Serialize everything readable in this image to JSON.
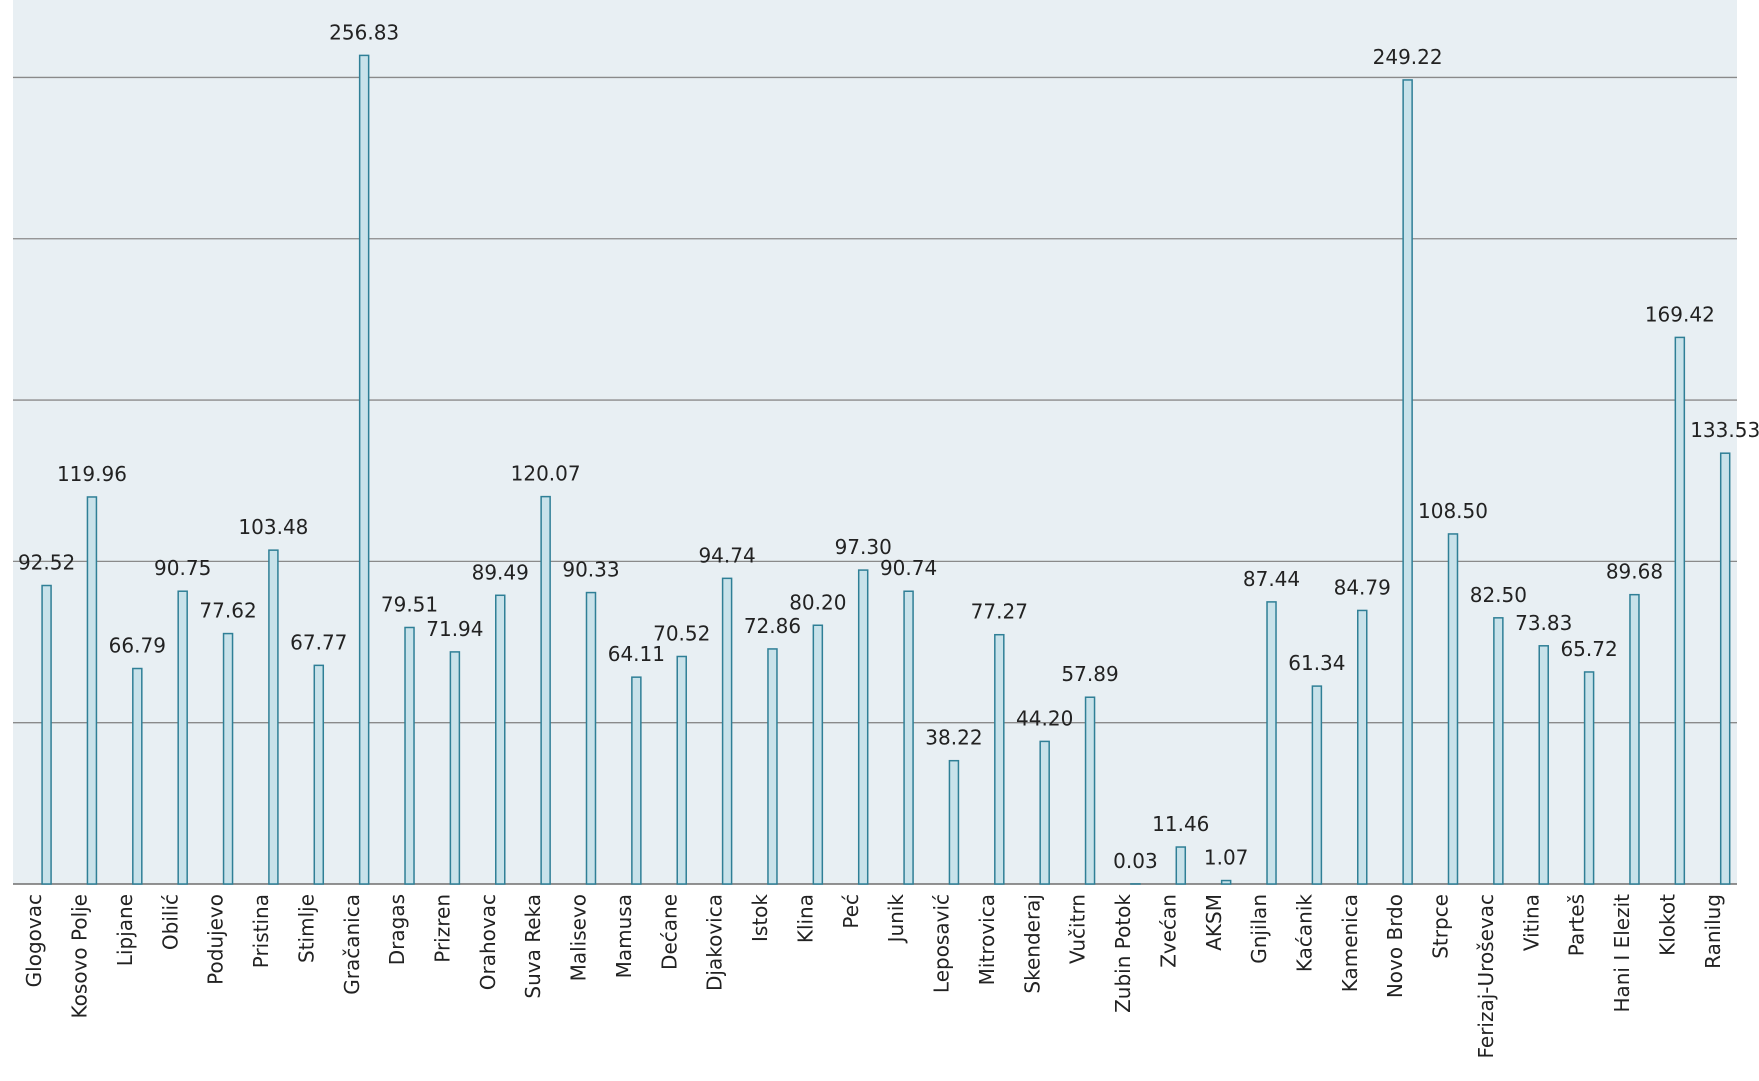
{
  "chart_data": {
    "type": "bar",
    "categories": [
      "Glogovac",
      "Kosovo Polje",
      "Lipjane",
      "Obilić",
      "Podujevo",
      "Pristina",
      "Stimlje",
      "Gračanica",
      "Dragas",
      "Prizren",
      "Orahovac",
      "Suva Reka",
      "Malisevo",
      "Mamusa",
      "Dećane",
      "Djakovica",
      "Istok",
      "Klina",
      "Peć",
      "Junik",
      "Leposavić",
      "Mitrovica",
      "Skenderaj",
      "Vučitrn",
      "Zubin Potok",
      "Zvećan",
      "AKSM",
      "Gnjilan",
      "Kaćanik",
      "Kamenica",
      "Novo Brdo",
      "Strpce",
      "Ferizaj-Uroševac",
      "Vitina",
      "Parteš",
      "Hani I Elezit",
      "Klokot",
      "Ranilug"
    ],
    "values": [
      92.52,
      119.96,
      66.79,
      90.75,
      77.62,
      103.48,
      67.77,
      256.83,
      79.51,
      71.94,
      89.49,
      120.07,
      90.33,
      64.11,
      70.52,
      94.74,
      72.86,
      80.2,
      97.3,
      90.74,
      38.22,
      77.27,
      44.2,
      57.89,
      0.03,
      11.46,
      1.07,
      87.44,
      61.34,
      84.79,
      249.22,
      108.5,
      82.5,
      73.83,
      65.72,
      89.68,
      169.42,
      133.53
    ],
    "value_labels": [
      "92.52",
      "119.96",
      "66.79",
      "90.75",
      "77.62",
      "103.48",
      "67.77",
      "256.83",
      "79.51",
      "71.94",
      "89.49",
      "120.07",
      "90.33",
      "64.11",
      "70.52",
      "94.74",
      "72.86",
      "80.20",
      "97.30",
      "90.74",
      "38.22",
      "77.27",
      "44.20",
      "57.89",
      "0.03",
      "11.46",
      "1.07",
      "87.44",
      "61.34",
      "84.79",
      "249.22",
      "108.50",
      "82.50",
      "73.83",
      "65.72",
      "89.68",
      "169.42",
      "133.53"
    ],
    "color": "#c8e2ea",
    "ylim": [
      0,
      274
    ],
    "yticks": [
      0,
      50,
      100,
      150,
      200,
      250
    ],
    "grid": true
  }
}
